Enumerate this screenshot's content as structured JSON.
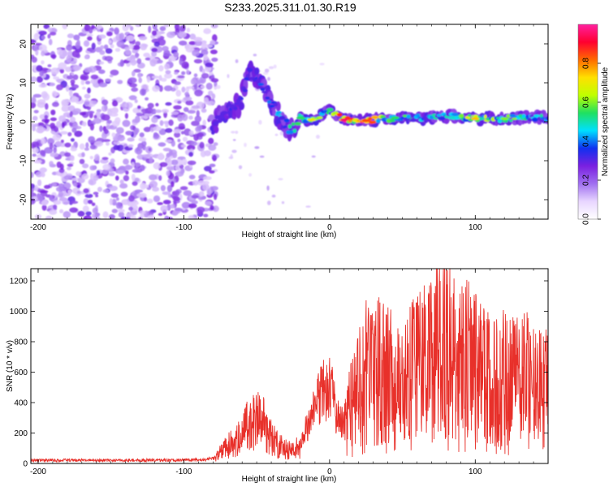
{
  "title": "S233.2025.311.01.30.R19",
  "colors": {
    "series_line": "#e8302a",
    "axis": "#000000",
    "background": "#ffffff",
    "colormap": [
      "#ffffff",
      "#e8d6ff",
      "#a070f0",
      "#7a20e0",
      "#1030f0",
      "#00e0ff",
      "#20e060",
      "#c0ff00",
      "#ffe000",
      "#ff6a00",
      "#ff0030",
      "#ff20a0"
    ]
  },
  "chart_data": [
    {
      "type": "heatmap",
      "title": "S233.2025.311.01.30.R19",
      "xlabel": "Height of straight line (km)",
      "ylabel": "Frequency (Hz)",
      "xlim": [
        -205,
        150
      ],
      "ylim": [
        -25,
        25
      ],
      "xticks": [
        "-200",
        "-100",
        "0",
        "100"
      ],
      "yticks": [
        "-20",
        "-10",
        "0",
        "10",
        "20"
      ],
      "colorbar": {
        "label": "Normalized spectral amplitude",
        "range": [
          0.0,
          1.0
        ],
        "ticks": [
          "0.0",
          "0.2",
          "0.4",
          "0.6",
          "0.8"
        ]
      },
      "noise_region": {
        "x_range": [
          -205,
          -80
        ],
        "y_range": [
          -25,
          25
        ],
        "amplitude_range": [
          0.1,
          0.3
        ]
      },
      "ridge": [
        {
          "x": -80,
          "y": -1.5,
          "amp": 0.25
        },
        {
          "x": -72,
          "y": 3,
          "amp": 0.3
        },
        {
          "x": -62,
          "y": 4,
          "amp": 0.35
        },
        {
          "x": -55,
          "y": 13,
          "amp": 0.3
        },
        {
          "x": -48,
          "y": 10,
          "amp": 0.35
        },
        {
          "x": -40,
          "y": 5,
          "amp": 0.4
        },
        {
          "x": -32,
          "y": -0.5,
          "amp": 0.45
        },
        {
          "x": -25,
          "y": -2,
          "amp": 0.5
        },
        {
          "x": -20,
          "y": 1,
          "amp": 0.55
        },
        {
          "x": -12,
          "y": 0.5,
          "amp": 0.7
        },
        {
          "x": 0,
          "y": 3,
          "amp": 0.5
        },
        {
          "x": 10,
          "y": 0.5,
          "amp": 0.95
        },
        {
          "x": 25,
          "y": 0.3,
          "amp": 0.85
        },
        {
          "x": 45,
          "y": 1,
          "amp": 0.55
        },
        {
          "x": 65,
          "y": 1,
          "amp": 0.5
        },
        {
          "x": 85,
          "y": 1.5,
          "amp": 0.45
        },
        {
          "x": 100,
          "y": 0.8,
          "amp": 0.75
        },
        {
          "x": 120,
          "y": 0.8,
          "amp": 0.6
        },
        {
          "x": 140,
          "y": 1.2,
          "amp": 0.5
        },
        {
          "x": 150,
          "y": 1,
          "amp": 0.45
        }
      ]
    },
    {
      "type": "line",
      "xlabel": "Height of straight line (km)",
      "ylabel": "SNR (10 * v/v)",
      "xlim": [
        -205,
        150
      ],
      "ylim": [
        0,
        1280
      ],
      "xticks": [
        "-200",
        "-100",
        "0",
        "100"
      ],
      "yticks": [
        "0",
        "200",
        "400",
        "600",
        "800",
        "1000",
        "1200"
      ],
      "series": [
        {
          "name": "SNR",
          "x": [
            -205,
            -180,
            -150,
            -120,
            -100,
            -85,
            -78,
            -70,
            -62,
            -56,
            -50,
            -45,
            -40,
            -35,
            -30,
            -25,
            -20,
            -15,
            -10,
            -5,
            0,
            5,
            10,
            15,
            20,
            25,
            30,
            35,
            40,
            45,
            50,
            55,
            60,
            65,
            70,
            75,
            80,
            85,
            90,
            95,
            100,
            105,
            110,
            115,
            120,
            125,
            130,
            135,
            140,
            145,
            150
          ],
          "values": [
            20,
            22,
            20,
            22,
            22,
            25,
            45,
            110,
            180,
            240,
            280,
            250,
            170,
            120,
            90,
            80,
            120,
            260,
            360,
            470,
            520,
            310,
            240,
            380,
            470,
            610,
            560,
            620,
            610,
            560,
            470,
            560,
            640,
            570,
            640,
            720,
            700,
            680,
            610,
            640,
            650,
            560,
            580,
            610,
            560,
            520,
            500,
            540,
            480,
            490,
            470
          ],
          "peaks": [
            [
              -45,
              420
            ],
            [
              23,
              900
            ],
            [
              65,
              1170
            ],
            [
              72,
              1120
            ],
            [
              81,
              1270
            ],
            [
              89,
              1020
            ],
            [
              97,
              880
            ],
            [
              106,
              1000
            ],
            [
              113,
              930
            ],
            [
              123,
              790
            ],
            [
              138,
              840
            ],
            [
              148,
              800
            ]
          ]
        }
      ]
    }
  ]
}
